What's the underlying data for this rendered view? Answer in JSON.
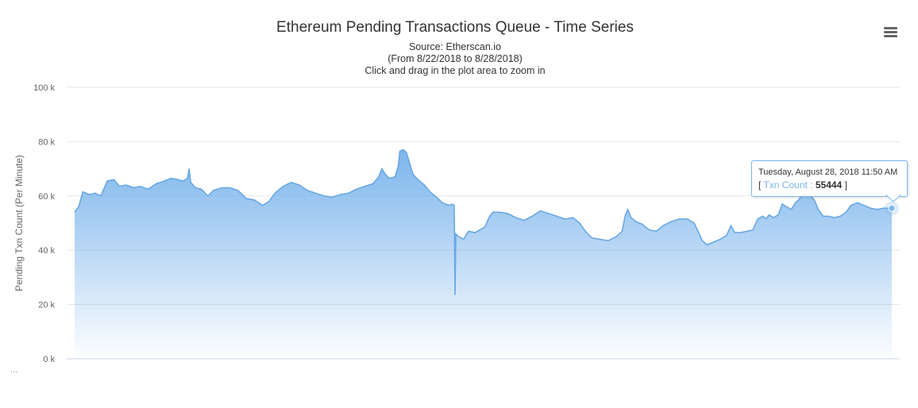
{
  "header": {
    "title": "Ethereum Pending Transactions Queue - Time Series",
    "subtitle_source": "Source: Etherscan.io",
    "subtitle_range": "(From 8/22/2018 to 8/28/2018)",
    "subtitle_hint": "Click and drag in the plot area to zoom in"
  },
  "menu": {
    "icon": "hamburger-menu-icon"
  },
  "footer": {
    "dots": "..."
  },
  "tooltip": {
    "date": "Tuesday, August 28, 2018 11:50 AM",
    "open_bracket": "[",
    "series_label": "Txn Count :",
    "value": "55444",
    "close_bracket": "]"
  },
  "colors": {
    "area_top": "#7cb5ec",
    "line": "#6aa8e2",
    "grid": "#e6e6e6",
    "tooltip_border": "#7cb5ec",
    "series_label": "#7cb5ec"
  },
  "chart_data": {
    "type": "area",
    "title": "Ethereum Pending Transactions Queue - Time Series",
    "subtitle": "Source: Etherscan.io (From 8/22/2018 to 8/28/2018) Click and drag in the plot area to zoom in",
    "xlabel": "",
    "ylabel": "Pending Txn Count (Per Minute)",
    "ylim": [
      0,
      100000
    ],
    "yticks": [
      0,
      20000,
      40000,
      60000,
      80000,
      100000
    ],
    "ytick_labels": [
      "0 k",
      "20 k",
      "40 k",
      "60 k",
      "80 k",
      "100 k"
    ],
    "x_start": "2018-08-22",
    "x_end": "2018-08-28 11:50",
    "grid": true,
    "legend": "none",
    "series": [
      {
        "name": "Txn Count",
        "values": [
          [
            0.0,
            54000
          ],
          [
            0.005,
            56000
          ],
          [
            0.01,
            61500
          ],
          [
            0.018,
            60500
          ],
          [
            0.025,
            61000
          ],
          [
            0.032,
            60000
          ],
          [
            0.04,
            65500
          ],
          [
            0.048,
            66000
          ],
          [
            0.055,
            63500
          ],
          [
            0.063,
            64000
          ],
          [
            0.072,
            63000
          ],
          [
            0.08,
            63500
          ],
          [
            0.09,
            62500
          ],
          [
            0.1,
            64500
          ],
          [
            0.11,
            65500
          ],
          [
            0.118,
            66500
          ],
          [
            0.126,
            66000
          ],
          [
            0.133,
            65500
          ],
          [
            0.138,
            66500
          ],
          [
            0.14,
            70000
          ],
          [
            0.142,
            65000
          ],
          [
            0.148,
            63000
          ],
          [
            0.155,
            62500
          ],
          [
            0.163,
            60000
          ],
          [
            0.17,
            62000
          ],
          [
            0.18,
            63000
          ],
          [
            0.19,
            63000
          ],
          [
            0.2,
            62000
          ],
          [
            0.21,
            59000
          ],
          [
            0.22,
            58500
          ],
          [
            0.23,
            56500
          ],
          [
            0.238,
            58000
          ],
          [
            0.245,
            61000
          ],
          [
            0.255,
            63500
          ],
          [
            0.265,
            65000
          ],
          [
            0.275,
            64000
          ],
          [
            0.285,
            62000
          ],
          [
            0.295,
            61000
          ],
          [
            0.305,
            60000
          ],
          [
            0.315,
            59500
          ],
          [
            0.325,
            60500
          ],
          [
            0.335,
            61000
          ],
          [
            0.345,
            62500
          ],
          [
            0.355,
            63500
          ],
          [
            0.365,
            64500
          ],
          [
            0.372,
            67000
          ],
          [
            0.376,
            70000
          ],
          [
            0.38,
            68000
          ],
          [
            0.385,
            66500
          ],
          [
            0.392,
            67000
          ],
          [
            0.396,
            71000
          ],
          [
            0.398,
            76500
          ],
          [
            0.402,
            77000
          ],
          [
            0.406,
            76000
          ],
          [
            0.41,
            72000
          ],
          [
            0.414,
            68000
          ],
          [
            0.42,
            66000
          ],
          [
            0.428,
            64000
          ],
          [
            0.435,
            61500
          ],
          [
            0.443,
            59500
          ],
          [
            0.45,
            57500
          ],
          [
            0.458,
            56500
          ],
          [
            0.462,
            57000
          ],
          [
            0.4645,
            56500
          ],
          [
            0.4655,
            23500
          ],
          [
            0.4665,
            46000
          ],
          [
            0.47,
            45000
          ],
          [
            0.476,
            44000
          ],
          [
            0.482,
            47000
          ],
          [
            0.49,
            46500
          ],
          [
            0.496,
            47500
          ],
          [
            0.502,
            48500
          ],
          [
            0.507,
            52000
          ],
          [
            0.512,
            54000
          ],
          [
            0.52,
            54000
          ],
          [
            0.53,
            53500
          ],
          [
            0.54,
            52000
          ],
          [
            0.55,
            51000
          ],
          [
            0.56,
            52500
          ],
          [
            0.57,
            54500
          ],
          [
            0.58,
            53500
          ],
          [
            0.59,
            52500
          ],
          [
            0.6,
            51500
          ],
          [
            0.61,
            52000
          ],
          [
            0.618,
            50000
          ],
          [
            0.625,
            47000
          ],
          [
            0.633,
            44500
          ],
          [
            0.643,
            44000
          ],
          [
            0.653,
            43500
          ],
          [
            0.663,
            45000
          ],
          [
            0.67,
            47000
          ],
          [
            0.674,
            53000
          ],
          [
            0.677,
            55000
          ],
          [
            0.681,
            52000
          ],
          [
            0.687,
            50500
          ],
          [
            0.695,
            49500
          ],
          [
            0.703,
            47500
          ],
          [
            0.712,
            47000
          ],
          [
            0.72,
            49000
          ],
          [
            0.73,
            50500
          ],
          [
            0.74,
            51500
          ],
          [
            0.75,
            51500
          ],
          [
            0.758,
            50000
          ],
          [
            0.763,
            47000
          ],
          [
            0.768,
            43500
          ],
          [
            0.774,
            42000
          ],
          [
            0.782,
            43000
          ],
          [
            0.79,
            44000
          ],
          [
            0.798,
            45500
          ],
          [
            0.803,
            49000
          ],
          [
            0.808,
            46500
          ],
          [
            0.815,
            46500
          ],
          [
            0.823,
            47000
          ],
          [
            0.83,
            47500
          ],
          [
            0.836,
            51500
          ],
          [
            0.842,
            52500
          ],
          [
            0.846,
            51500
          ],
          [
            0.85,
            53000
          ],
          [
            0.855,
            52000
          ],
          [
            0.861,
            53000
          ],
          [
            0.866,
            57000
          ],
          [
            0.871,
            56000
          ],
          [
            0.877,
            55000
          ],
          [
            0.882,
            57500
          ],
          [
            0.886,
            58500
          ],
          [
            0.889,
            60000
          ],
          [
            0.893,
            60500
          ],
          [
            0.9,
            60500
          ],
          [
            0.906,
            58000
          ],
          [
            0.91,
            55000
          ],
          [
            0.916,
            52500
          ],
          [
            0.922,
            52500
          ],
          [
            0.93,
            52000
          ],
          [
            0.937,
            52500
          ],
          [
            0.944,
            54000
          ],
          [
            0.95,
            56500
          ],
          [
            0.958,
            57500
          ],
          [
            0.966,
            56500
          ],
          [
            0.974,
            55500
          ],
          [
            0.982,
            55000
          ],
          [
            0.99,
            55500
          ],
          [
            1.0,
            55444
          ]
        ]
      }
    ]
  }
}
